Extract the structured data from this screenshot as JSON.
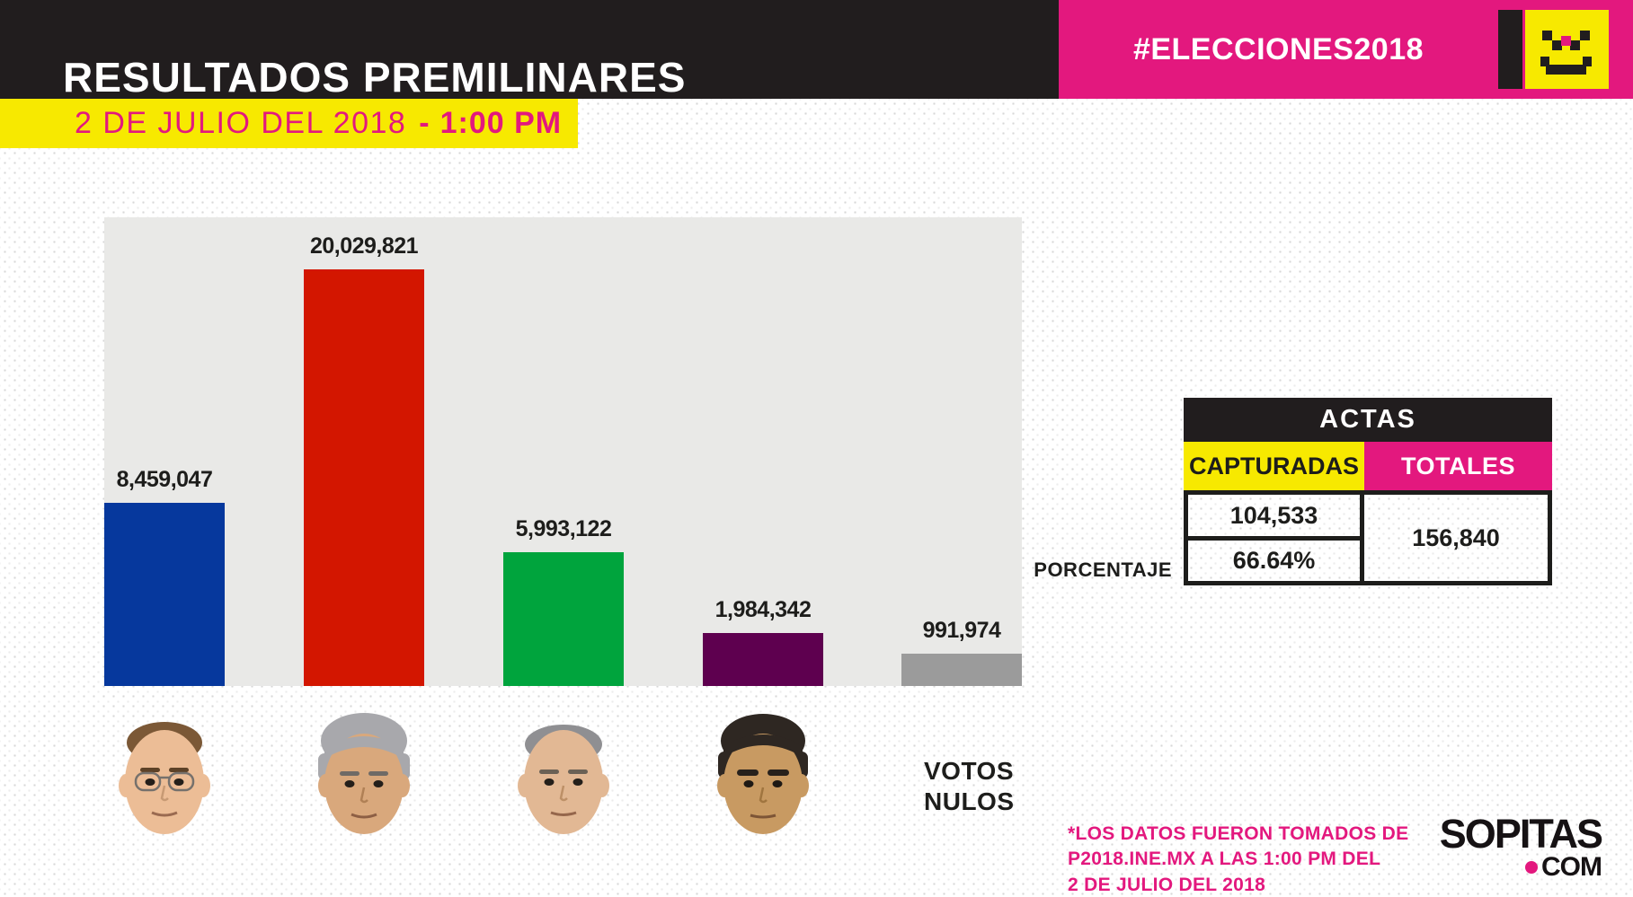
{
  "colors": {
    "black_bar": "#211d1e",
    "pink": "#e3187e",
    "yellow": "#f7e900",
    "plot_background": "#e9e9e7",
    "text_dark": "#1d1d1b",
    "white": "#ffffff"
  },
  "header": {
    "title": "RESULTADOS PREMILINARES",
    "hashtag": "#ELECCIONES2018"
  },
  "date_banner": {
    "date": "2 DE JULIO DEL 2018",
    "dash": "-",
    "time": "1:00 PM"
  },
  "chart_data": {
    "type": "bar",
    "title": "RESULTADOS PREMILINARES",
    "categories": [
      "candidate-1",
      "candidate-2",
      "candidate-3",
      "candidate-4",
      "votos-nulos"
    ],
    "values": [
      8459047,
      20029821,
      5993122,
      1984342,
      991974
    ],
    "value_labels": [
      "8,459,047",
      "20,029,821",
      "5,993,122",
      "1,984,342",
      "991,974"
    ],
    "bar_colors": [
      "#06389d",
      "#d31600",
      "#00a43d",
      "#5e004f",
      "#9b9b9b"
    ],
    "ylim": [
      0,
      20029821
    ],
    "grid": false,
    "legend": false,
    "x_axis_note": "first four bars labeled with candidate face photos; last bar labeled VOTOS NULOS"
  },
  "votos_nulos": {
    "line1": "VOTOS",
    "line2": "NULOS"
  },
  "actas": {
    "title": "ACTAS",
    "col_capturadas": "CAPTURADAS",
    "col_totales": "TOTALES",
    "capturadas_value": "104,533",
    "porcentaje_label": "PORCENTAJE",
    "porcentaje_value": "66.64%",
    "totales_value": "156,840"
  },
  "footnote": {
    "line1": "*LOS DATOS FUERON TOMADOS DE",
    "line2": "P2018.INE.MX A LAS 1:00 PM DEL",
    "line3": "2 DE JULIO DEL 2018"
  },
  "brand": {
    "name": "SOPITAS",
    "tld": "COM"
  },
  "icons": {
    "brand_smiley": "pixel-smiley-face",
    "brand_dot": "pink-dot"
  }
}
